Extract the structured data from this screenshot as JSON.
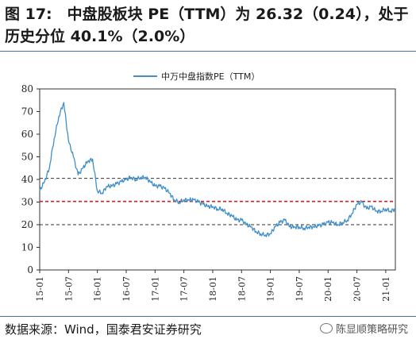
{
  "header": {
    "title": "图 17:　中盘股板块 PE（TTM）为 26.32（0.24），处于历史分位 40.1%（2.0%）"
  },
  "footer": {
    "source": "数据来源：Wind，国泰君安证券研究",
    "watermark": "陈显顺策略研究",
    "watermark_icon": "wechat-icon"
  },
  "chart_data": {
    "type": "line",
    "title": "",
    "xlabel": "",
    "ylabel": "",
    "ylim": [
      0,
      80
    ],
    "yticks": [
      0,
      10,
      20,
      30,
      40,
      50,
      60,
      70,
      80
    ],
    "xlim": [
      "2015-01",
      "2021-03"
    ],
    "xticks": [
      "15-01",
      "15-07",
      "16-01",
      "16-07",
      "17-01",
      "17-07",
      "18-01",
      "18-07",
      "19-01",
      "19-07",
      "20-01",
      "20-07",
      "21-01"
    ],
    "legend": {
      "placement": "top-center"
    },
    "grid": false,
    "series": [
      {
        "name": "中万中盘指数PE（TTM）",
        "color": "#3f8fc8",
        "points": [
          [
            "2015-01",
            35
          ],
          [
            "2015-02",
            39
          ],
          [
            "2015-03",
            45
          ],
          [
            "2015-04",
            58
          ],
          [
            "2015-05",
            68
          ],
          [
            "2015-06",
            74
          ],
          [
            "2015-07",
            57
          ],
          [
            "2015-08",
            50
          ],
          [
            "2015-09",
            42
          ],
          [
            "2015-10",
            45
          ],
          [
            "2015-11",
            48
          ],
          [
            "2015-12",
            49
          ],
          [
            "2016-01",
            35
          ],
          [
            "2016-02",
            34
          ],
          [
            "2016-03",
            37
          ],
          [
            "2016-04",
            37
          ],
          [
            "2016-05",
            38
          ],
          [
            "2016-06",
            39
          ],
          [
            "2016-07",
            40
          ],
          [
            "2016-08",
            41
          ],
          [
            "2016-09",
            40
          ],
          [
            "2016-10",
            41
          ],
          [
            "2016-11",
            41
          ],
          [
            "2016-12",
            39
          ],
          [
            "2017-01",
            37
          ],
          [
            "2017-02",
            37
          ],
          [
            "2017-03",
            36
          ],
          [
            "2017-04",
            34
          ],
          [
            "2017-05",
            31
          ],
          [
            "2017-06",
            30
          ],
          [
            "2017-07",
            31
          ],
          [
            "2017-08",
            31
          ],
          [
            "2017-09",
            31
          ],
          [
            "2017-10",
            30
          ],
          [
            "2017-11",
            29
          ],
          [
            "2017-12",
            28
          ],
          [
            "2018-01",
            28
          ],
          [
            "2018-02",
            27
          ],
          [
            "2018-03",
            27
          ],
          [
            "2018-04",
            25
          ],
          [
            "2018-05",
            24
          ],
          [
            "2018-06",
            22
          ],
          [
            "2018-07",
            22
          ],
          [
            "2018-08",
            20
          ],
          [
            "2018-09",
            19
          ],
          [
            "2018-10",
            17
          ],
          [
            "2018-11",
            16
          ],
          [
            "2018-12",
            15.5
          ],
          [
            "2019-01",
            16
          ],
          [
            "2019-02",
            19
          ],
          [
            "2019-03",
            21
          ],
          [
            "2019-04",
            22
          ],
          [
            "2019-05",
            19
          ],
          [
            "2019-06",
            19
          ],
          [
            "2019-07",
            19
          ],
          [
            "2019-08",
            18.5
          ],
          [
            "2019-09",
            19
          ],
          [
            "2019-10",
            19
          ],
          [
            "2019-11",
            19.5
          ],
          [
            "2019-12",
            20
          ],
          [
            "2020-01",
            21
          ],
          [
            "2020-02",
            21
          ],
          [
            "2020-03",
            20
          ],
          [
            "2020-04",
            21
          ],
          [
            "2020-05",
            22
          ],
          [
            "2020-06",
            25
          ],
          [
            "2020-07",
            29
          ],
          [
            "2020-08",
            30
          ],
          [
            "2020-09",
            27
          ],
          [
            "2020-10",
            28
          ],
          [
            "2020-11",
            26
          ],
          [
            "2020-12",
            26
          ],
          [
            "2021-01",
            27
          ],
          [
            "2021-02",
            26
          ],
          [
            "2021-03",
            27
          ]
        ]
      }
    ],
    "reference_lines": [
      {
        "value": 40.5,
        "style": "dashed",
        "color": "#333333"
      },
      {
        "value": 30.3,
        "style": "dashed",
        "color": "#d42020"
      },
      {
        "value": 20.0,
        "style": "dashed",
        "color": "#333333"
      }
    ]
  }
}
